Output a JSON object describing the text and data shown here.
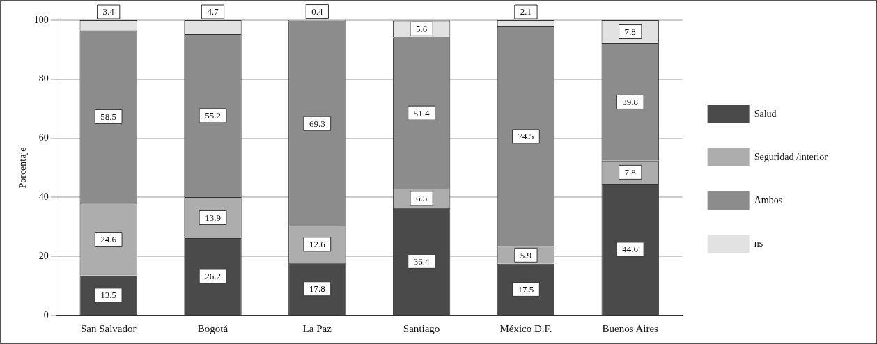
{
  "chart_data": {
    "type": "bar",
    "stacked": true,
    "ylabel": "Porcentaje",
    "categories": [
      "San Salvador",
      "Bogotá",
      "La Paz",
      "Santiago",
      "México D.F.",
      "Buenos Aires"
    ],
    "series": [
      {
        "name": "Salud",
        "color": "#4a4a4a",
        "values": [
          13.5,
          26.2,
          17.8,
          36.4,
          17.5,
          44.6
        ]
      },
      {
        "name": "Seguridad /interior",
        "color": "#adadad",
        "values": [
          24.6,
          13.9,
          12.6,
          6.5,
          5.9,
          7.8
        ]
      },
      {
        "name": "Ambos",
        "color": "#8c8c8c",
        "values": [
          58.5,
          55.2,
          69.3,
          51.4,
          74.5,
          39.8
        ]
      },
      {
        "name": "ns",
        "color": "#e2e2e2",
        "values": [
          3.4,
          4.7,
          0.4,
          5.6,
          2.1,
          7.8
        ]
      }
    ],
    "ylim": [
      0,
      100
    ],
    "yticks": [
      0,
      20,
      40,
      60,
      80,
      100
    ],
    "grid": "y",
    "legend": "right",
    "data_labels": true
  }
}
